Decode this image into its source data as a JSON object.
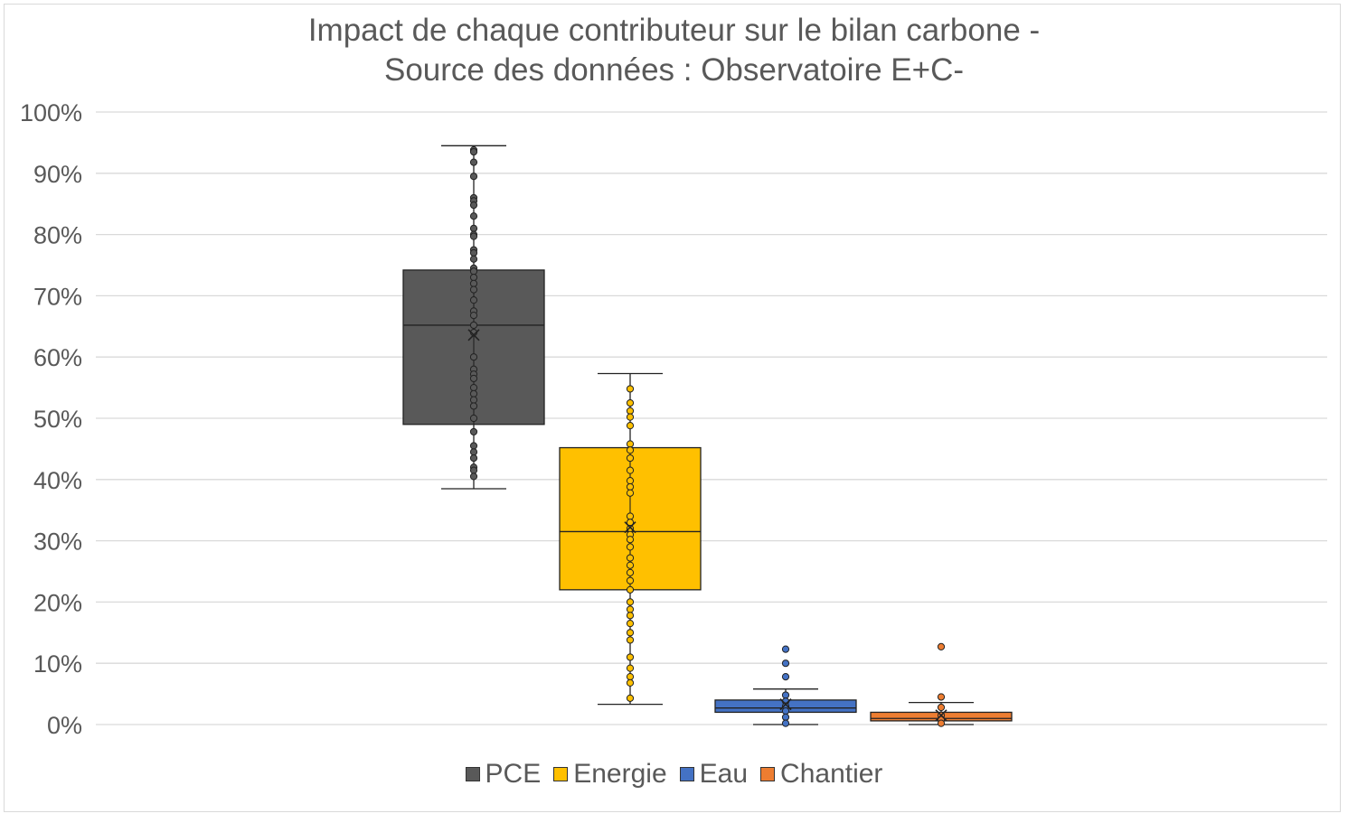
{
  "chart_data": {
    "type": "box",
    "title_lines": [
      "Impact de chaque contributeur sur le bilan carbone -",
      "Source des données : Observatoire E+C-"
    ],
    "xlabel": "",
    "ylabel": "",
    "ylim": [
      0,
      1
    ],
    "yticks": [
      "0%",
      "10%",
      "20%",
      "30%",
      "40%",
      "50%",
      "60%",
      "70%",
      "80%",
      "90%",
      "100%"
    ],
    "grid": true,
    "legend_position": "bottom",
    "series": [
      {
        "name": "PCE",
        "color": "#595959",
        "whisker_low": 0.385,
        "q1": 0.49,
        "median": 0.652,
        "q3": 0.742,
        "whisker_high": 0.945,
        "mean": 0.636,
        "points": [
          0.938,
          0.935,
          0.918,
          0.895,
          0.86,
          0.855,
          0.848,
          0.83,
          0.81,
          0.8,
          0.797,
          0.775,
          0.77,
          0.76,
          0.745,
          0.74,
          0.73,
          0.72,
          0.71,
          0.693,
          0.675,
          0.668,
          0.652,
          0.64,
          0.6,
          0.58,
          0.572,
          0.565,
          0.55,
          0.54,
          0.53,
          0.52,
          0.5,
          0.478,
          0.455,
          0.445,
          0.435,
          0.42,
          0.415,
          0.405
        ]
      },
      {
        "name": "Energie",
        "color": "#FFC000",
        "whisker_low": 0.033,
        "q1": 0.22,
        "median": 0.315,
        "q3": 0.452,
        "whisker_high": 0.573,
        "mean": 0.322,
        "points": [
          0.548,
          0.525,
          0.512,
          0.502,
          0.488,
          0.458,
          0.448,
          0.435,
          0.415,
          0.398,
          0.388,
          0.378,
          0.34,
          0.33,
          0.32,
          0.31,
          0.302,
          0.29,
          0.272,
          0.26,
          0.248,
          0.235,
          0.22,
          0.2,
          0.188,
          0.178,
          0.165,
          0.15,
          0.138,
          0.11,
          0.092,
          0.078,
          0.068,
          0.043
        ]
      },
      {
        "name": "Eau",
        "color": "#4472C4",
        "whisker_low": 0.0,
        "q1": 0.02,
        "median": 0.027,
        "q3": 0.04,
        "whisker_high": 0.058,
        "mean": 0.033,
        "points": [
          0.123,
          0.1,
          0.078,
          0.048,
          0.038,
          0.03,
          0.022,
          0.012,
          0.002
        ]
      },
      {
        "name": "Chantier",
        "color": "#ED7D31",
        "whisker_low": 0.0,
        "q1": 0.006,
        "median": 0.01,
        "q3": 0.02,
        "whisker_high": 0.036,
        "mean": 0.015,
        "points": [
          0.127,
          0.045,
          0.028,
          0.015,
          0.008,
          0.002
        ]
      }
    ]
  }
}
